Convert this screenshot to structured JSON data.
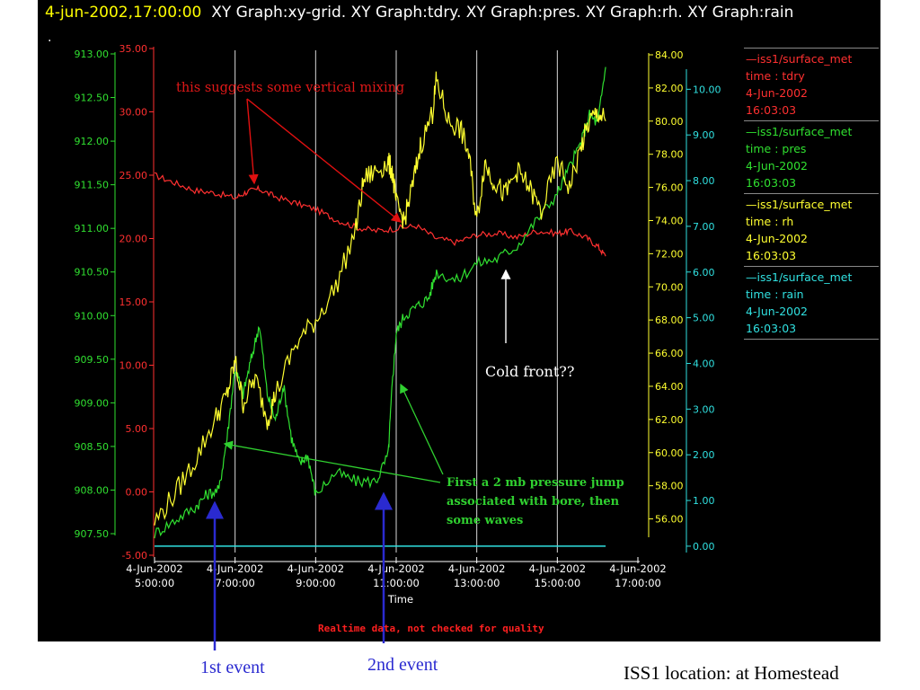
{
  "header": {
    "timestamp": "4-jun-2002,17:00:00",
    "graphs": "XY Graph:xy-grid.  XY Graph:tdry.  XY Graph:pres.  XY Graph:rh.  XY Graph:rain",
    "dot": "."
  },
  "legend": [
    {
      "source": "iss1/surface_met",
      "var": "time : tdry",
      "date": "4-Jun-2002",
      "time": "16:03:03",
      "color": "#ff3030"
    },
    {
      "source": "iss1/surface_met",
      "var": "time : pres",
      "date": "4-Jun-2002",
      "time": "16:03:03",
      "color": "#30e030"
    },
    {
      "source": "iss1/surface_met",
      "var": "time : rh",
      "date": "4-Jun-2002",
      "time": "16:03:03",
      "color": "#ffff30"
    },
    {
      "source": "iss1/surface_met",
      "var": "time : rain",
      "date": "4-Jun-2002",
      "time": "16:03:03",
      "color": "#30e0e0"
    }
  ],
  "footer": {
    "quality_note": "Realtime data, not checked for quality",
    "first_event": "1st event",
    "second_event": "2nd event",
    "location": "ISS1 location: at Homestead"
  },
  "chart_data": {
    "type": "line",
    "xlabel": "Time",
    "x_ticks": [
      {
        "date": "4-Jun-2002",
        "time": "5:00:00"
      },
      {
        "date": "4-Jun-2002",
        "time": "7:00:00"
      },
      {
        "date": "4-Jun-2002",
        "time": "9:00:00"
      },
      {
        "date": "4-Jun-2002",
        "time": "11:00:00"
      },
      {
        "date": "4-Jun-2002",
        "time": "13:00:00"
      },
      {
        "date": "4-Jun-2002",
        "time": "15:00:00"
      },
      {
        "date": "4-Jun-2002",
        "time": "17:00:00"
      }
    ],
    "xlim_hours": [
      5,
      17
    ],
    "vertical_grid": true,
    "axes": {
      "pres": {
        "color": "#30e030",
        "ylim": [
          907.5,
          913.0
        ],
        "ticks": [
          "907.50",
          "908.00",
          "908.50",
          "909.00",
          "909.50",
          "910.00",
          "910.50",
          "911.00",
          "911.50",
          "912.00",
          "912.50",
          "913.00"
        ]
      },
      "tdry": {
        "color": "#ff3030",
        "ylim": [
          -5,
          35
        ],
        "ticks": [
          "-5.00",
          "0.00",
          "5.00",
          "10.00",
          "15.00",
          "20.00",
          "25.00",
          "30.00",
          "35.00"
        ]
      },
      "rh": {
        "color": "#ffff30",
        "ylim": [
          55,
          84
        ],
        "ticks": [
          "56.00",
          "58.00",
          "60.00",
          "62.00",
          "64.00",
          "66.00",
          "68.00",
          "70.00",
          "72.00",
          "74.00",
          "76.00",
          "78.00",
          "80.00",
          "82.00",
          "84.00"
        ]
      },
      "rain": {
        "color": "#30e0e0",
        "ylim": [
          -0.1,
          10.4
        ],
        "ticks": [
          "0.00",
          "1.00",
          "2.00",
          "3.00",
          "4.00",
          "5.00",
          "6.00",
          "7.00",
          "8.00",
          "9.00",
          "10.00"
        ]
      }
    },
    "series": [
      {
        "name": "tdry",
        "axis": "tdry",
        "color": "#ff3030",
        "x": [
          5.0,
          5.5,
          6.0,
          6.5,
          7.0,
          7.3,
          7.6,
          8.0,
          8.5,
          9.0,
          9.5,
          10.0,
          10.5,
          11.0,
          11.5,
          12.0,
          12.5,
          13.0,
          13.5,
          14.0,
          14.5,
          15.0,
          15.3,
          15.7,
          16.0,
          16.2
        ],
        "y": [
          25.0,
          24.4,
          23.8,
          23.6,
          23.2,
          23.7,
          23.9,
          23.3,
          22.8,
          22.3,
          21.5,
          20.9,
          20.6,
          20.8,
          21.0,
          20.0,
          19.7,
          20.3,
          20.4,
          20.1,
          20.6,
          20.4,
          20.6,
          20.1,
          19.4,
          18.6
        ]
      },
      {
        "name": "pres",
        "axis": "pres",
        "color": "#30e030",
        "x": [
          5.0,
          5.5,
          6.0,
          6.3,
          6.6,
          6.8,
          7.0,
          7.2,
          7.4,
          7.6,
          7.8,
          8.0,
          8.2,
          8.4,
          8.6,
          8.8,
          9.0,
          9.5,
          10.0,
          10.5,
          10.8,
          10.9,
          11.0,
          11.2,
          11.5,
          11.8,
          12.0,
          12.5,
          13.0,
          13.5,
          14.0,
          14.5,
          15.0,
          15.3,
          15.6,
          15.8,
          16.0,
          16.2
        ],
        "y": [
          907.5,
          907.65,
          907.8,
          907.95,
          908.0,
          908.6,
          909.4,
          909.1,
          909.5,
          909.9,
          909.1,
          908.8,
          909.2,
          908.6,
          908.3,
          908.4,
          907.95,
          908.2,
          908.1,
          908.1,
          908.4,
          909.2,
          909.8,
          910.0,
          910.1,
          910.2,
          910.5,
          910.4,
          910.6,
          910.65,
          910.8,
          911.1,
          911.4,
          911.7,
          912.0,
          912.3,
          912.2,
          912.85
        ]
      },
      {
        "name": "rh",
        "axis": "rh",
        "color": "#ffff30",
        "x": [
          5.0,
          5.5,
          6.0,
          6.5,
          6.8,
          7.0,
          7.2,
          7.5,
          7.8,
          8.0,
          8.5,
          9.0,
          9.5,
          10.0,
          10.2,
          10.5,
          10.8,
          10.9,
          11.0,
          11.2,
          11.4,
          11.6,
          11.9,
          12.0,
          12.3,
          12.6,
          12.8,
          13.0,
          13.2,
          13.4,
          13.7,
          14.0,
          14.3,
          14.6,
          15.0,
          15.3,
          15.6,
          15.8,
          16.0,
          16.2
        ],
        "y": [
          55.8,
          57.5,
          59.5,
          62.0,
          63.5,
          65.5,
          63.0,
          64.5,
          62.0,
          63.5,
          66.5,
          68.0,
          70.0,
          73.5,
          76.5,
          77.0,
          77.5,
          77.0,
          75.0,
          74.0,
          76.0,
          78.5,
          80.5,
          82.5,
          80.0,
          79.5,
          78.0,
          74.0,
          77.5,
          76.5,
          75.5,
          77.0,
          76.0,
          74.5,
          77.5,
          76.0,
          78.5,
          80.0,
          80.5,
          80.0
        ]
      },
      {
        "name": "rain",
        "axis": "rain",
        "color": "#30e0e0",
        "x": [
          5.0,
          16.2
        ],
        "y": [
          0.0,
          0.0
        ]
      }
    ],
    "annotations": {
      "vertical_mixing": "this suggests some vertical mixing",
      "cold_front": "Cold front??",
      "pressure_jump": [
        "First a 2 mb pressure jump",
        "associated with bore, then",
        "some waves"
      ]
    }
  }
}
